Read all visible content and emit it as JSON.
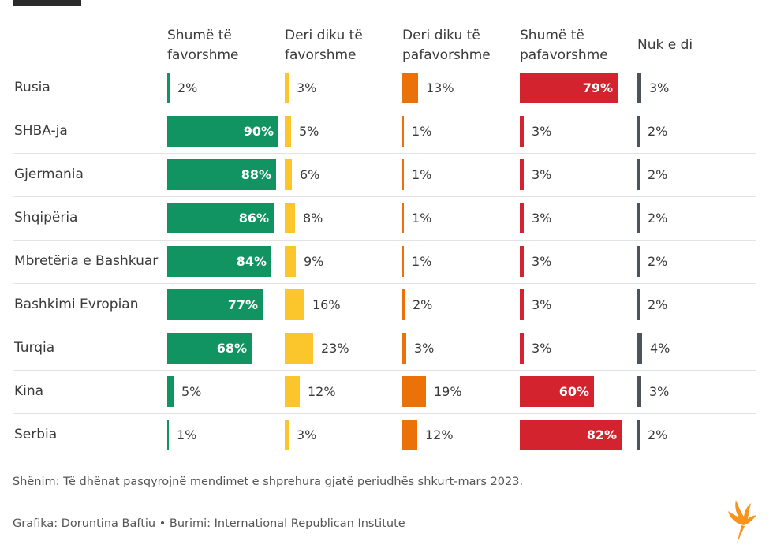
{
  "chart_data": {
    "type": "table",
    "title": "",
    "columns": [
      {
        "line1": "Shumë të",
        "line2": "favorshme",
        "color": "#119462"
      },
      {
        "line1": "Deri diku të",
        "line2": "favorshme",
        "color": "#fac62b"
      },
      {
        "line1": "Deri diku të",
        "line2": "pafavorshme",
        "color": "#ea7209"
      },
      {
        "line1": "Shumë të",
        "line2": "pafavorshme",
        "color": "#d2232e"
      },
      {
        "line1": "Nuk e di",
        "line2": "",
        "color": "#4a535e"
      }
    ],
    "rows": [
      {
        "label": "Rusia",
        "values": [
          2,
          3,
          13,
          79,
          3
        ],
        "display": [
          "2%",
          "3%",
          "13%",
          "79%",
          "3%"
        ]
      },
      {
        "label": "SHBA-ja",
        "values": [
          90,
          5,
          1,
          3,
          2
        ],
        "display": [
          "90%",
          "5%",
          "1%",
          "3%",
          "2%"
        ]
      },
      {
        "label": "Gjermania",
        "values": [
          88,
          6,
          1,
          3,
          2
        ],
        "display": [
          "88%",
          "6%",
          "1%",
          "3%",
          "2%"
        ]
      },
      {
        "label": "Shqipëria",
        "values": [
          86,
          8,
          1,
          3,
          2
        ],
        "display": [
          "86%",
          "8%",
          "1%",
          "3%",
          "2%"
        ]
      },
      {
        "label": "Mbretëria e Bashkuar",
        "values": [
          84,
          9,
          1,
          3,
          2
        ],
        "display": [
          "84%",
          "9%",
          "1%",
          "3%",
          "2%"
        ]
      },
      {
        "label": "Bashkimi Evropian",
        "values": [
          77,
          16,
          2,
          3,
          2
        ],
        "display": [
          "77%",
          "16%",
          "2%",
          "3%",
          "2%"
        ]
      },
      {
        "label": "Turqia",
        "values": [
          68,
          23,
          3,
          3,
          4
        ],
        "display": [
          "68%",
          "23%",
          "3%",
          "3%",
          "4%"
        ]
      },
      {
        "label": "Kina",
        "values": [
          5,
          12,
          19,
          60,
          3
        ],
        "display": [
          "5%",
          "12%",
          "19%",
          "60%",
          "3%"
        ]
      },
      {
        "label": "Serbia",
        "values": [
          1,
          3,
          12,
          82,
          2
        ],
        "display": [
          "1%",
          "3%",
          "12%",
          "82%",
          "2%"
        ]
      }
    ],
    "value_max": 100
  },
  "footer": {
    "note": "Shënim: Të dhënat pasqyrojnë mendimet e shprehura gjatë periudhës shkurt-mars 2023.",
    "credit": "Grafika: Doruntina Baftiu • Burimi: International Republican Institute"
  },
  "logo": {
    "icon": "torch-logo-icon",
    "color": "#f7941d"
  }
}
